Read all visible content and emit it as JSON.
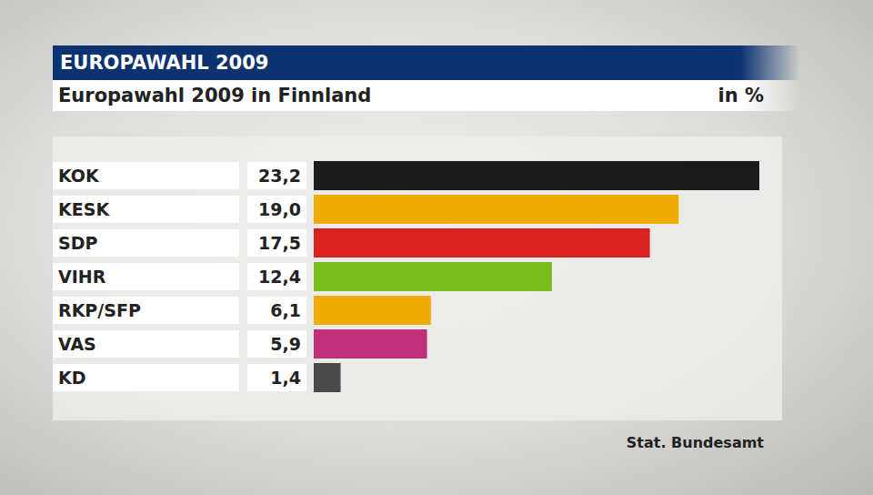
{
  "chart_data": {
    "type": "bar",
    "orientation": "horizontal",
    "title": "EUROPAWAHL 2009",
    "subtitle": "Europawahl 2009 in Finnland",
    "xlabel": "in %",
    "annotations": [
      "Stat. Bundesamt"
    ],
    "categories": [
      "KOK",
      "KESK",
      "SDP",
      "VIHR",
      "RKP/SFP",
      "VAS",
      "KD"
    ],
    "values": [
      23.2,
      19.0,
      17.5,
      12.4,
      6.1,
      5.9,
      1.4
    ],
    "value_labels": [
      "23,2",
      "19,0",
      "17,5",
      "12,4",
      "6,1",
      "5,9",
      "1,4"
    ],
    "colors": [
      "#1a1a1a",
      "#f0ab00",
      "#d9221f",
      "#78be1e",
      "#f0ab00",
      "#c0307a",
      "#4a4a4a"
    ],
    "xlim": [
      0,
      23.2
    ],
    "data_labels": true,
    "tick_labels": "y",
    "grid": false
  }
}
